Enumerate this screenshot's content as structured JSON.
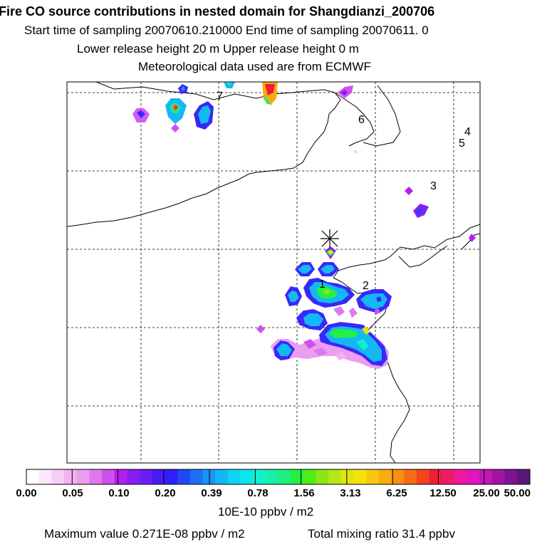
{
  "header": {
    "title": "Fire CO source contributions in nested domain for Shangdianzi_200706",
    "sampling": "Start time of sampling 20070610.210000      End time of sampling 20070611.     0",
    "release": "Lower release height   20 m          Upper release height    0 m",
    "met": "Meteorological data used are from ECMWF"
  },
  "map": {
    "receptor": "Shangdianzi",
    "site_labels": [
      "1",
      "2",
      "3",
      "4",
      "5",
      "6",
      "7"
    ]
  },
  "colorbar": {
    "colors": [
      "#ffffff",
      "#fbe6fb",
      "#f6cdf6",
      "#f0b2f0",
      "#ec9df0",
      "#df78ef",
      "#cf50ee",
      "#b41ef0",
      "#8a1cf4",
      "#6a1ef6",
      "#4a1af8",
      "#2f1ffa",
      "#2147f9",
      "#1f6ff8",
      "#1c94f6",
      "#14b6f5",
      "#10d3f4",
      "#0de6ec",
      "#12f0cf",
      "#17f0a9",
      "#1df07c",
      "#24ef43",
      "#4fec18",
      "#8ce613",
      "#b8e614",
      "#dde614",
      "#f7e10d",
      "#f9c80e",
      "#f8ac10",
      "#f88e13",
      "#f76a17",
      "#f5431b",
      "#f31c3a",
      "#f01a6c",
      "#f018a0",
      "#e016c2",
      "#c515b7",
      "#a114a3",
      "#7d1491",
      "#5a1679"
    ],
    "tick_labels": [
      "0.00",
      "0.05",
      "0.10",
      "0.20",
      "0.39",
      "0.78",
      "1.56",
      "3.13",
      "6.25",
      "12.50",
      "25.00",
      "50.00"
    ],
    "units": "10E-10 ppbv / m2"
  },
  "footer": {
    "maximum": "Maximum value  0.271E-08 ppbv / m2",
    "total": "Total mixing ratio       31.4 ppbv"
  }
}
